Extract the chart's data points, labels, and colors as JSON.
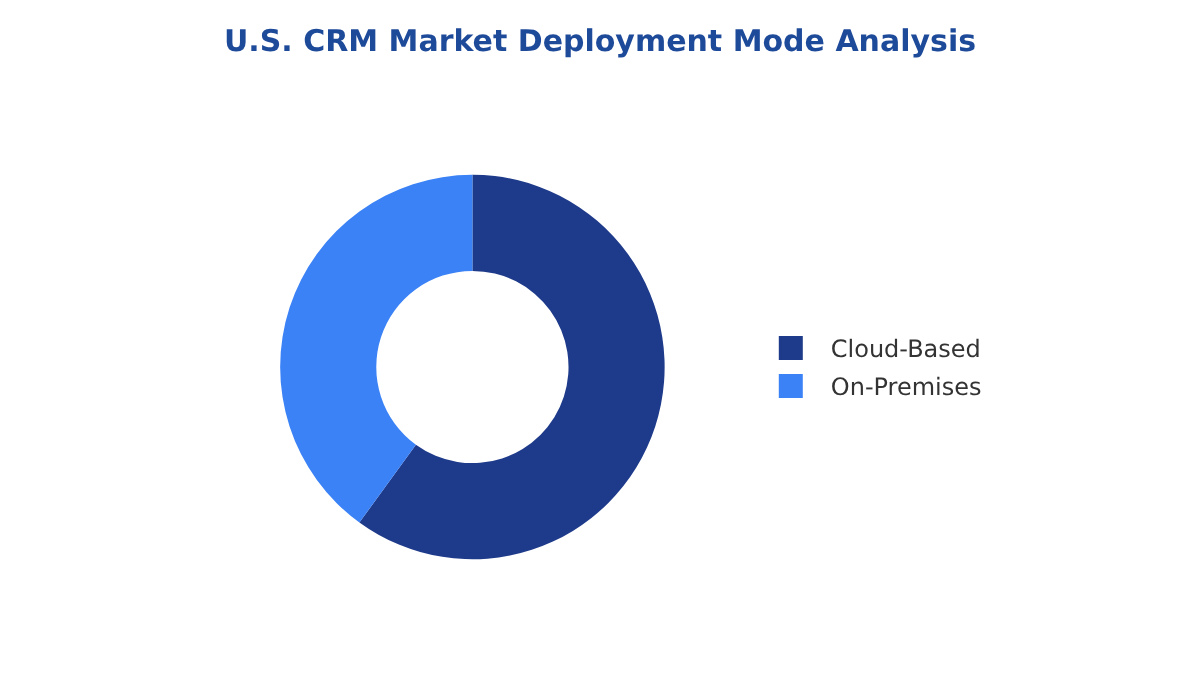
{
  "chart_data": {
    "type": "donut",
    "title": "U.S. CRM Market Deployment Mode Analysis",
    "categories": [
      "Cloud-Based",
      "On-Premises"
    ],
    "values": [
      60,
      40
    ],
    "colors": [
      "#1e3a8a",
      "#3b82f6"
    ],
    "legend": "right"
  }
}
